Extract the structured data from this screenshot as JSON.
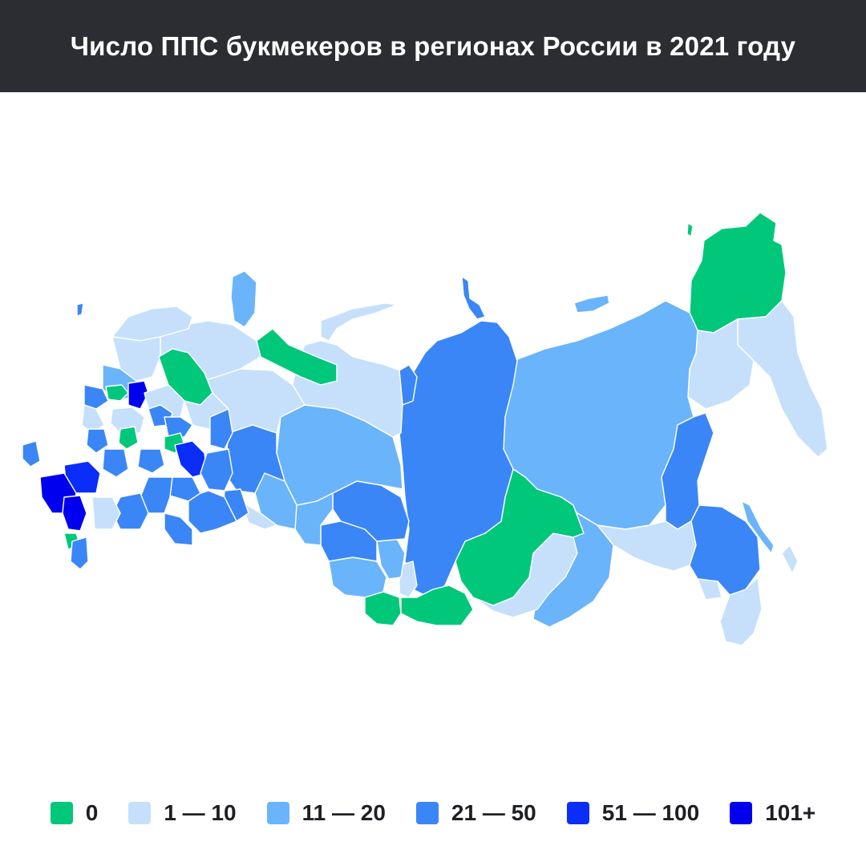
{
  "header": {
    "title": "Число ППС букмекеров в регионах России в 2021 году"
  },
  "legend": [
    {
      "label": "0",
      "color": "#00c77a"
    },
    {
      "label": "1 — 10",
      "color": "#c6e0fb"
    },
    {
      "label": "11 — 20",
      "color": "#6ab4fb"
    },
    {
      "label": "21 — 50",
      "color": "#3a86f6"
    },
    {
      "label": "51 — 100",
      "color": "#0a2df8"
    },
    {
      "label": "101+",
      "color": "#0000ee"
    }
  ]
}
